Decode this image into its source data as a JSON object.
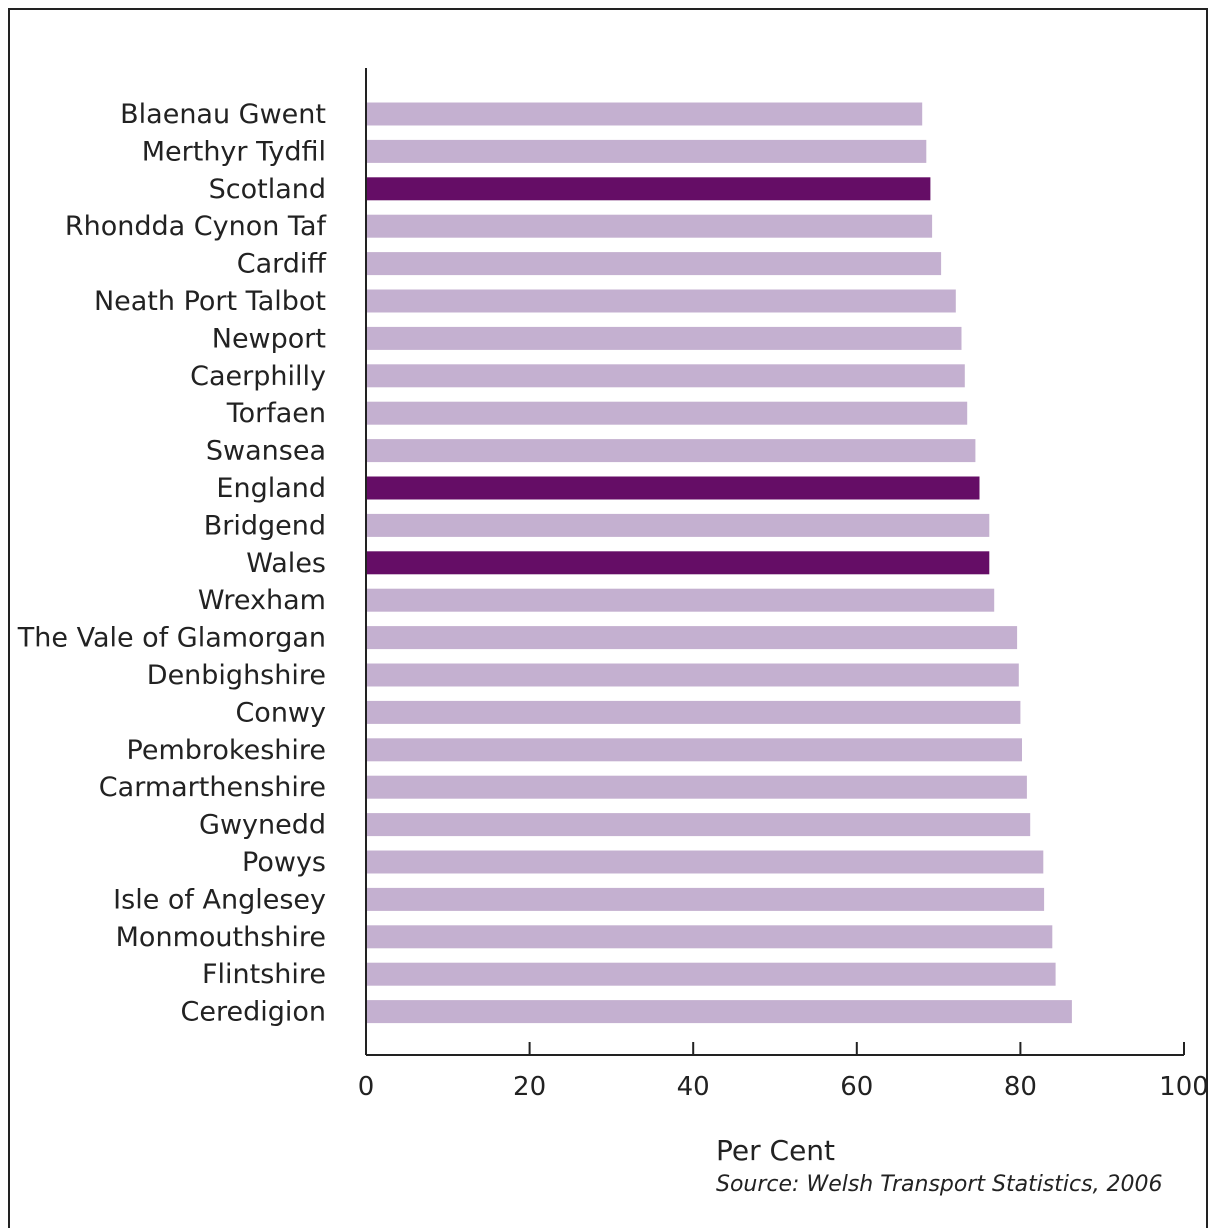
{
  "chart_data": {
    "type": "bar",
    "orientation": "horizontal",
    "categories": [
      "Blaenau Gwent",
      "Merthyr Tydfil",
      "Scotland",
      "Rhondda Cynon Taf",
      "Cardiff",
      "Neath Port Talbot",
      "Newport",
      "Caerphilly",
      "Torfaen",
      "Swansea",
      "England",
      "Bridgend",
      "Wales",
      "Wrexham",
      "The Vale of Glamorgan",
      "Denbighshire",
      "Conwy",
      "Pembrokeshire",
      "Carmarthenshire",
      "Gwynedd",
      "Powys",
      "Isle of Anglesey",
      "Monmouthshire",
      "Flintshire",
      "Ceredigion"
    ],
    "values": [
      68,
      68.5,
      69,
      69.2,
      70.3,
      72.1,
      72.8,
      73.2,
      73.5,
      74.5,
      75,
      76.2,
      76.2,
      76.8,
      79.6,
      79.8,
      80,
      80.2,
      80.8,
      81.2,
      82.8,
      82.9,
      83.9,
      84.3,
      86.3
    ],
    "highlighted": [
      "Scotland",
      "England",
      "Wales"
    ],
    "xlabel": "Per Cent",
    "source": "Source: Welsh Transport Statistics, 2006",
    "xlim": [
      0,
      100
    ],
    "xticks": [
      0,
      20,
      40,
      60,
      80,
      100
    ],
    "grid": false,
    "colors": {
      "region": "#c4b0d0",
      "nation": "#650d66",
      "axis": "#222222"
    }
  }
}
